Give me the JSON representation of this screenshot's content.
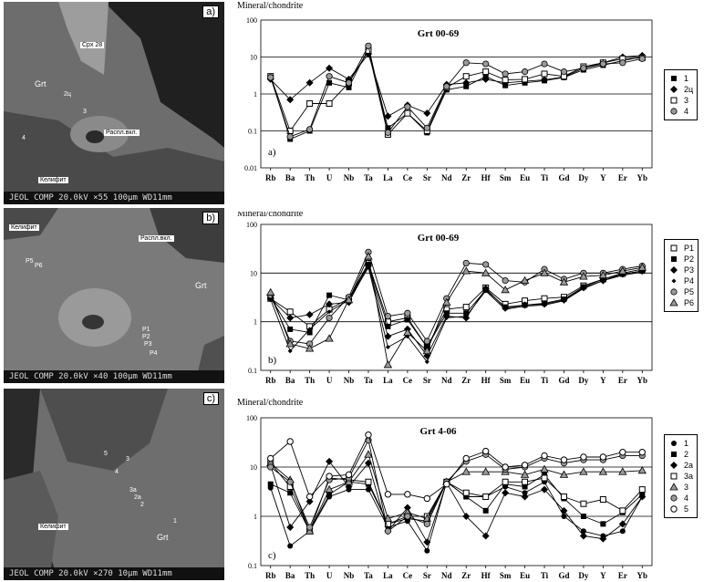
{
  "colors": {
    "line": "#000000",
    "grid": "#000000",
    "marker_gray": "#9a9a9a",
    "bse_dark": "#3a3a3a",
    "bse_mid": "#777777",
    "bse_light": "#a9a9a9"
  },
  "images": [
    {
      "letter": "a)",
      "scale_bar": "JEOL COMP  20.0kV   ×55  100µm WD11mm",
      "labels": [
        "Cpx 28",
        "Grt",
        "2ц",
        "3",
        "4",
        "Распл.вкл.",
        "Келифит"
      ]
    },
    {
      "letter": "b)",
      "scale_bar": "JEOL COMP  20.0kV   ×40  100µm WD11mm",
      "labels": [
        "Келифит",
        "Распл.вкл.",
        "Grt",
        "P5",
        "P6",
        "P1",
        "P2",
        "P3",
        "P4"
      ]
    },
    {
      "letter": "c)",
      "scale_bar": "JEOL COMP  20.0kV   ×270  10µm WD11mm",
      "labels": [
        "Келифит",
        "Grt",
        "3",
        "4",
        "3a",
        "2a",
        "2",
        "1",
        "5"
      ]
    }
  ],
  "chart_data": [
    {
      "type": "line",
      "title": "Grt 00-69",
      "ylabel": "Mineral/chondrite",
      "panel_label": "a)",
      "yscale": "log",
      "ylim": [
        0.01,
        100
      ],
      "yticks": [
        "100",
        "10",
        "1",
        "0.1",
        "0.01"
      ],
      "categories": [
        "Rb",
        "Ba",
        "Th",
        "U",
        "Nb",
        "Ta",
        "La",
        "Ce",
        "Sr",
        "Nd",
        "Zr",
        "Hf",
        "Sm",
        "Eu",
        "Ti",
        "Gd",
        "Dy",
        "Y",
        "Er",
        "Yb"
      ],
      "series": [
        {
          "name": "1",
          "marker": "square-filled",
          "values": [
            3,
            0.06,
            0.1,
            2,
            1.5,
            17,
            0.12,
            0.3,
            0.09,
            1.3,
            1.6,
            3,
            1.7,
            2,
            2.3,
            2.8,
            4.5,
            6,
            8,
            10
          ]
        },
        {
          "name": "2ц",
          "marker": "diamond-filled",
          "values": [
            2.5,
            0.7,
            2,
            5,
            2.5,
            12,
            0.25,
            0.5,
            0.3,
            1.8,
            2,
            2.5,
            2,
            2.2,
            2.4,
            2.9,
            5,
            7,
            10,
            11
          ]
        },
        {
          "name": "3",
          "marker": "square-open",
          "values": [
            3,
            0.1,
            0.55,
            0.55,
            2,
            15,
            0.08,
            0.3,
            0.1,
            1.5,
            3,
            4,
            2.4,
            2.5,
            3.5,
            3,
            5.5,
            7,
            9,
            9.5
          ]
        },
        {
          "name": "4",
          "marker": "circle-gray",
          "values": [
            2.8,
            0.07,
            0.11,
            3,
            2,
            20,
            0.09,
            0.45,
            0.12,
            1.6,
            7,
            6.5,
            3.5,
            4,
            6.5,
            4,
            5,
            6.5,
            7,
            9
          ]
        }
      ]
    },
    {
      "type": "line",
      "title": "Grt 00-69",
      "ylabel": "Mineral/chondrite",
      "panel_label": "b)",
      "yscale": "log",
      "ylim": [
        0.1,
        100
      ],
      "yticks": [
        "100",
        "10",
        "1",
        "0.1"
      ],
      "categories": [
        "Rb",
        "Ba",
        "Th",
        "U",
        "Nb",
        "Ta",
        "La",
        "Ce",
        "Sr",
        "Nd",
        "Zr",
        "Hf",
        "Sm",
        "Eu",
        "Ti",
        "Gd",
        "Dy",
        "Y",
        "Er",
        "Yb"
      ],
      "series": [
        {
          "name": "P1",
          "marker": "square-open",
          "values": [
            3,
            1.6,
            0.8,
            1.8,
            3,
            16,
            1,
            1.2,
            0.3,
            1.8,
            2,
            5,
            2.3,
            2.7,
            3,
            3.2,
            5.5,
            7.5,
            10,
            12
          ]
        },
        {
          "name": "P2",
          "marker": "square-filled",
          "values": [
            3.1,
            0.7,
            0.6,
            3.5,
            2.8,
            15,
            0.8,
            1.1,
            0.3,
            1.5,
            1.5,
            4.5,
            2,
            2.2,
            2.4,
            2.9,
            5.2,
            7.5,
            9.5,
            11
          ]
        },
        {
          "name": "P3",
          "marker": "diamond-filled",
          "values": [
            3,
            1.2,
            1.4,
            2.3,
            2.5,
            14,
            0.5,
            0.7,
            0.2,
            1.3,
            1.2,
            4.8,
            1.9,
            2.2,
            2.3,
            2.8,
            5,
            7,
            9.5,
            11
          ]
        },
        {
          "name": "P4",
          "marker": "diamond-small",
          "values": [
            2.9,
            0.25,
            0.7,
            1.6,
            2.8,
            13,
            0.3,
            0.5,
            0.15,
            1.2,
            1.3,
            4.3,
            1.8,
            2.1,
            2.2,
            2.7,
            4.8,
            7,
            9,
            10.5
          ]
        },
        {
          "name": "P5",
          "marker": "circle-gray",
          "values": [
            3.5,
            0.4,
            0.35,
            1.2,
            3.2,
            27,
            1.3,
            1.5,
            0.4,
            3,
            16,
            15,
            7,
            6.5,
            12,
            7.5,
            10,
            10,
            12,
            14
          ]
        },
        {
          "name": "P6",
          "marker": "triangle-gray",
          "values": [
            4,
            0.35,
            0.28,
            0.45,
            2.8,
            22,
            0.13,
            0.6,
            0.25,
            2.5,
            11,
            10,
            4.5,
            7,
            10,
            6.5,
            8.5,
            9,
            11,
            13
          ]
        }
      ]
    },
    {
      "type": "line",
      "title": "Grt 4-06",
      "ylabel": "Mineral/chondrite",
      "panel_label": "c)",
      "yscale": "log",
      "ylim": [
        0.1,
        100
      ],
      "yticks": [
        "100",
        "10",
        "1",
        "0.1"
      ],
      "categories": [
        "Rb",
        "Ba",
        "Th",
        "U",
        "Nb",
        "Ta",
        "La",
        "Ce",
        "Sr",
        "Nd",
        "Zr",
        "Hf",
        "Sm",
        "Eu",
        "Ti",
        "Gd",
        "Dy",
        "Y",
        "Er",
        "Yb"
      ],
      "series": [
        {
          "name": "1",
          "marker": "circle-filled",
          "values": [
            3.8,
            0.25,
            0.5,
            2.5,
            3.5,
            3.5,
            0.6,
            0.8,
            0.2,
            5,
            2.5,
            2.5,
            4,
            3,
            5,
            1,
            0.5,
            0.4,
            0.5,
            2.5
          ]
        },
        {
          "name": "2",
          "marker": "square-filled",
          "values": [
            4.5,
            3,
            0.5,
            2.8,
            5,
            4.5,
            0.7,
            0.9,
            0.8,
            5,
            2.5,
            1.3,
            4.5,
            4,
            7,
            2.3,
            1,
            0.7,
            1.2,
            2.8
          ]
        },
        {
          "name": "2a",
          "marker": "diamond-filled",
          "values": [
            11,
            0.6,
            2,
            13,
            4,
            12,
            0.5,
            1.5,
            0.3,
            4.8,
            1,
            0.4,
            3,
            2.5,
            3.5,
            1.3,
            0.4,
            0.35,
            0.7,
            2.5
          ]
        },
        {
          "name": "3a",
          "marker": "square-open",
          "values": [
            12,
            4,
            0.5,
            6,
            5.5,
            5,
            0.7,
            1,
            1,
            5,
            3,
            2.5,
            5,
            5,
            6,
            2.5,
            1.8,
            2.2,
            1.3,
            3.5
          ]
        },
        {
          "name": "3",
          "marker": "triangle-gray",
          "values": [
            12,
            5.5,
            0.5,
            3.5,
            5,
            18,
            0.9,
            1.2,
            0.9,
            5,
            8,
            8,
            8,
            7,
            9,
            7,
            8,
            8,
            8,
            8.5
          ]
        },
        {
          "name": "4",
          "marker": "circle-gray",
          "values": [
            10,
            5,
            0.6,
            5.5,
            6,
            35,
            0.5,
            1,
            0.7,
            5,
            13,
            18,
            9,
            10,
            15,
            12,
            14,
            14,
            17,
            17
          ]
        },
        {
          "name": "5",
          "marker": "circle-open",
          "values": [
            15,
            33,
            2.5,
            6.5,
            7,
            45,
            2.8,
            2.8,
            2.3,
            4.5,
            15,
            21,
            10,
            11,
            17,
            14,
            16,
            16,
            20,
            20
          ]
        }
      ]
    }
  ]
}
